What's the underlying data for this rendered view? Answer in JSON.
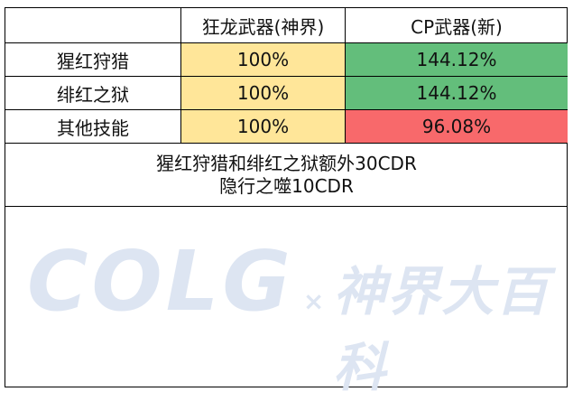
{
  "table": {
    "headers": [
      "狂龙武器(神界)",
      "CP武器(新)"
    ],
    "rows": [
      [
        "猩红狩猎",
        "100%",
        "144.12%"
      ],
      [
        "绯红之狱",
        "100%",
        "144.12%"
      ],
      [
        "其他技能",
        "100%",
        "96.08%"
      ]
    ],
    "notes": [
      "猩红狩猎和绯红之狱额外30CDR",
      "隐行之噬10CDR"
    ]
  },
  "watermark": {
    "brand": "COLG",
    "cross": "×",
    "site": "神界大百科"
  }
}
